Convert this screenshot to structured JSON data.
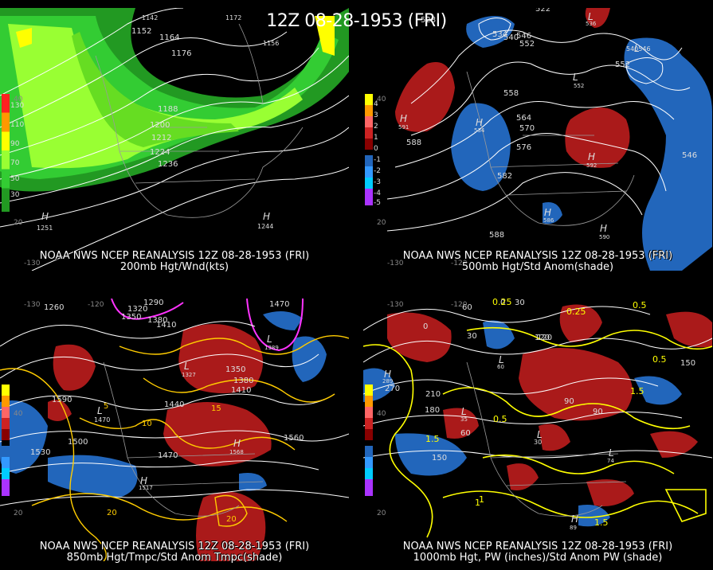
{
  "title": "12Z 08-28-1953 (FRI)",
  "panels": [
    {
      "id": "200mb",
      "caption_line1": "NOAA NWS NCEP REANALYSIS 12Z 08-28-1953 (FRI)",
      "caption_line2": "200mb Hgt/Wnd(kts)",
      "colorbar_labels": [
        "130",
        "110",
        "90",
        "70",
        "50",
        "30"
      ],
      "colorbar_colors": [
        "#ff2020",
        "#ff9900",
        "#ffff00",
        "#99ff33",
        "#33cc33",
        "#229922"
      ],
      "contour_labels": [
        "1152",
        "1164",
        "1176",
        "1188",
        "1200",
        "1212",
        "1224",
        "1236",
        "1142",
        "1172",
        "1156"
      ],
      "highs": [
        "1251",
        "1244"
      ],
      "lat_labels": [
        "40",
        "20"
      ],
      "lon_labels": [
        "-130"
      ]
    },
    {
      "id": "500mb",
      "caption_line1": "NOAA NWS NCEP REANALYSIS 12Z 08-28-1953 (FRI)",
      "caption_line2": "500mb Hgt/Std Anom(shade)",
      "colorbar_labels": [
        "4",
        "3",
        "2",
        "1",
        "0",
        "-1",
        "-2",
        "-3",
        "-4",
        "-5"
      ],
      "contour_labels": [
        "528",
        "534",
        "540",
        "546",
        "552",
        "558",
        "564",
        "570",
        "576",
        "582",
        "588",
        "522",
        "546",
        "552"
      ],
      "lows": [
        "536",
        "540546",
        "552"
      ],
      "highs": [
        "591",
        "534",
        "592",
        "586",
        "588",
        "590"
      ],
      "lat_labels": [
        "40",
        "20"
      ],
      "lon_labels": [
        "-130",
        "-120"
      ]
    },
    {
      "id": "850mb",
      "caption_line1": "NOAA NWS NCEP REANALYSIS 12Z 08-28-1953 (FRI)",
      "caption_line2": "850mb Hgt/Tmpc/Std Anom Tmpc(shade)",
      "contour_labels": [
        "1260",
        "1290",
        "1320",
        "1350",
        "1380",
        "1410",
        "1440",
        "1470",
        "1500",
        "1530",
        "1560",
        "1590",
        "1350",
        "1380",
        "1410",
        "1470"
      ],
      "temp_labels": [
        "5",
        "10",
        "15",
        "20",
        "20"
      ],
      "highs": [
        "1517",
        "1568",
        "1517"
      ],
      "lows": [
        "1327",
        "1389",
        "1470"
      ],
      "lat_labels": [
        "40",
        "20"
      ],
      "lon_labels": [
        "-130",
        "-120"
      ]
    },
    {
      "id": "1000mb",
      "caption_line1": "NOAA NWS NCEP REANALYSIS 12Z 08-28-1953 (FRI)",
      "caption_line2": "1000mb Hgt, PW (inches)/Std Anom PW (shade)",
      "contour_labels": [
        "0",
        "30",
        "60",
        "90",
        "120",
        "150",
        "180",
        "210",
        "270",
        "0",
        "30",
        "60",
        "90",
        "120",
        "150"
      ],
      "pw_labels": [
        "0.25",
        "0.5",
        "1",
        "1.5",
        "0.25",
        "0.5",
        "1.5",
        "1",
        "1.5",
        "0.5"
      ],
      "lows": [
        "60",
        "35",
        "30",
        "74"
      ],
      "highs": [
        "289",
        "89"
      ],
      "lat_labels": [
        "40",
        "20"
      ],
      "lon_labels": [
        "-130",
        "-120"
      ]
    }
  ]
}
